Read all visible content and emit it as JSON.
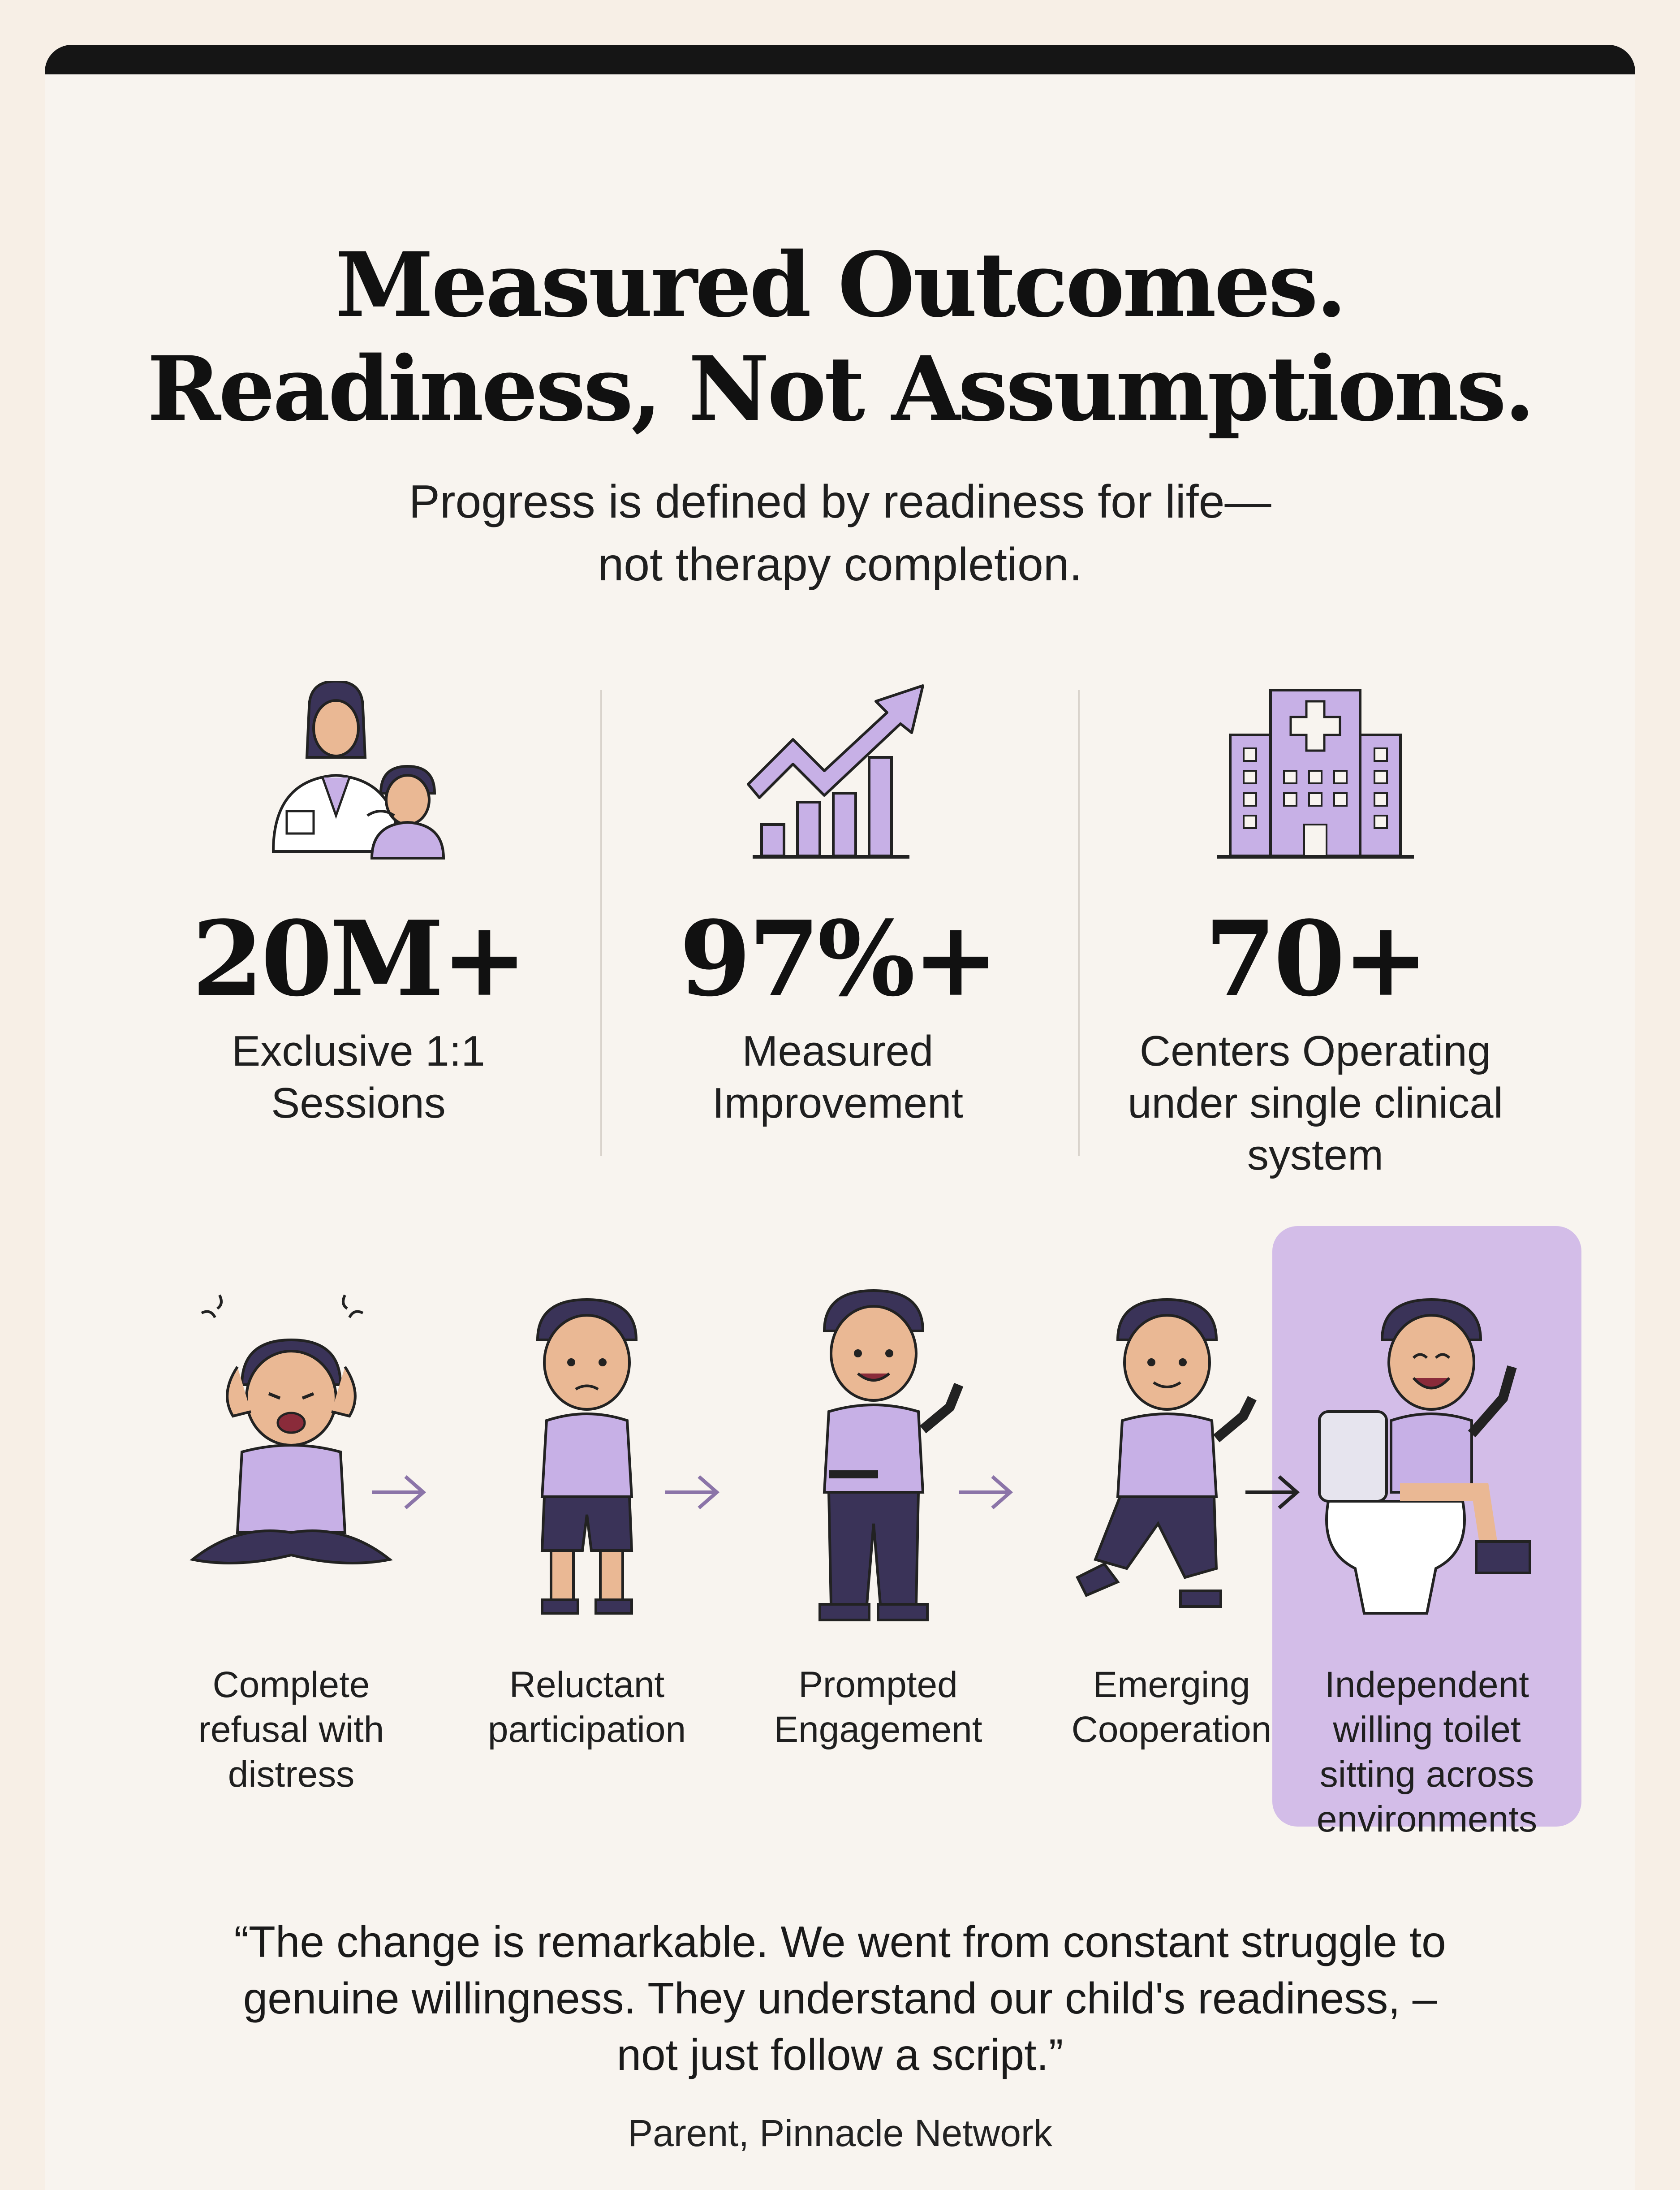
{
  "heading": {
    "line1": "Measured Outcomes.",
    "line2": "Readiness, Not Assumptions."
  },
  "subheading": {
    "line1": "Progress is defined by readiness for life—",
    "line2": "not therapy completion."
  },
  "stats": [
    {
      "value": "20M+",
      "label_line1": "Exclusive 1:1",
      "label_line2": "Sessions",
      "label_line3": "",
      "icon": "clinician-with-child-icon"
    },
    {
      "value": "97%+",
      "label_line1": "Measured",
      "label_line2": "Improvement",
      "label_line3": "",
      "icon": "growth-chart-icon"
    },
    {
      "value": "70+",
      "label_line1": "Centers Operating",
      "label_line2": "under single clinical",
      "label_line3": "system",
      "icon": "hospital-building-icon"
    }
  ],
  "stages": [
    {
      "line1": "Complete",
      "line2": "refusal with",
      "line3": "distress",
      "line4": "",
      "icon": "distressed-child-icon"
    },
    {
      "line1": "Reluctant",
      "line2": "participation",
      "line3": "",
      "line4": "",
      "icon": "hesitant-child-icon"
    },
    {
      "line1": "Prompted",
      "line2": "Engagement",
      "line3": "",
      "line4": "",
      "icon": "pointing-child-icon"
    },
    {
      "line1": "Emerging",
      "line2": "Cooperation",
      "line3": "",
      "line4": "",
      "icon": "walking-child-icon"
    },
    {
      "line1": "Independent",
      "line2": "willing toilet",
      "line3": "sitting across",
      "line4": "environments",
      "icon": "child-on-toilet-icon"
    }
  ],
  "testimonial": {
    "line1": "“The change is remarkable. We went from constant struggle to",
    "line2": "genuine willingness. They understand our child's readiness, –",
    "line3": "not just follow a script.”",
    "attribution": "Parent, Pinnacle Network"
  },
  "colors": {
    "background": "#f8f4ef",
    "accent_purple": "#c7b0e6",
    "highlight_panel": "#d3bde8",
    "hair_navy": "#3a3358",
    "skin": "#eab894",
    "text": "#111111"
  }
}
